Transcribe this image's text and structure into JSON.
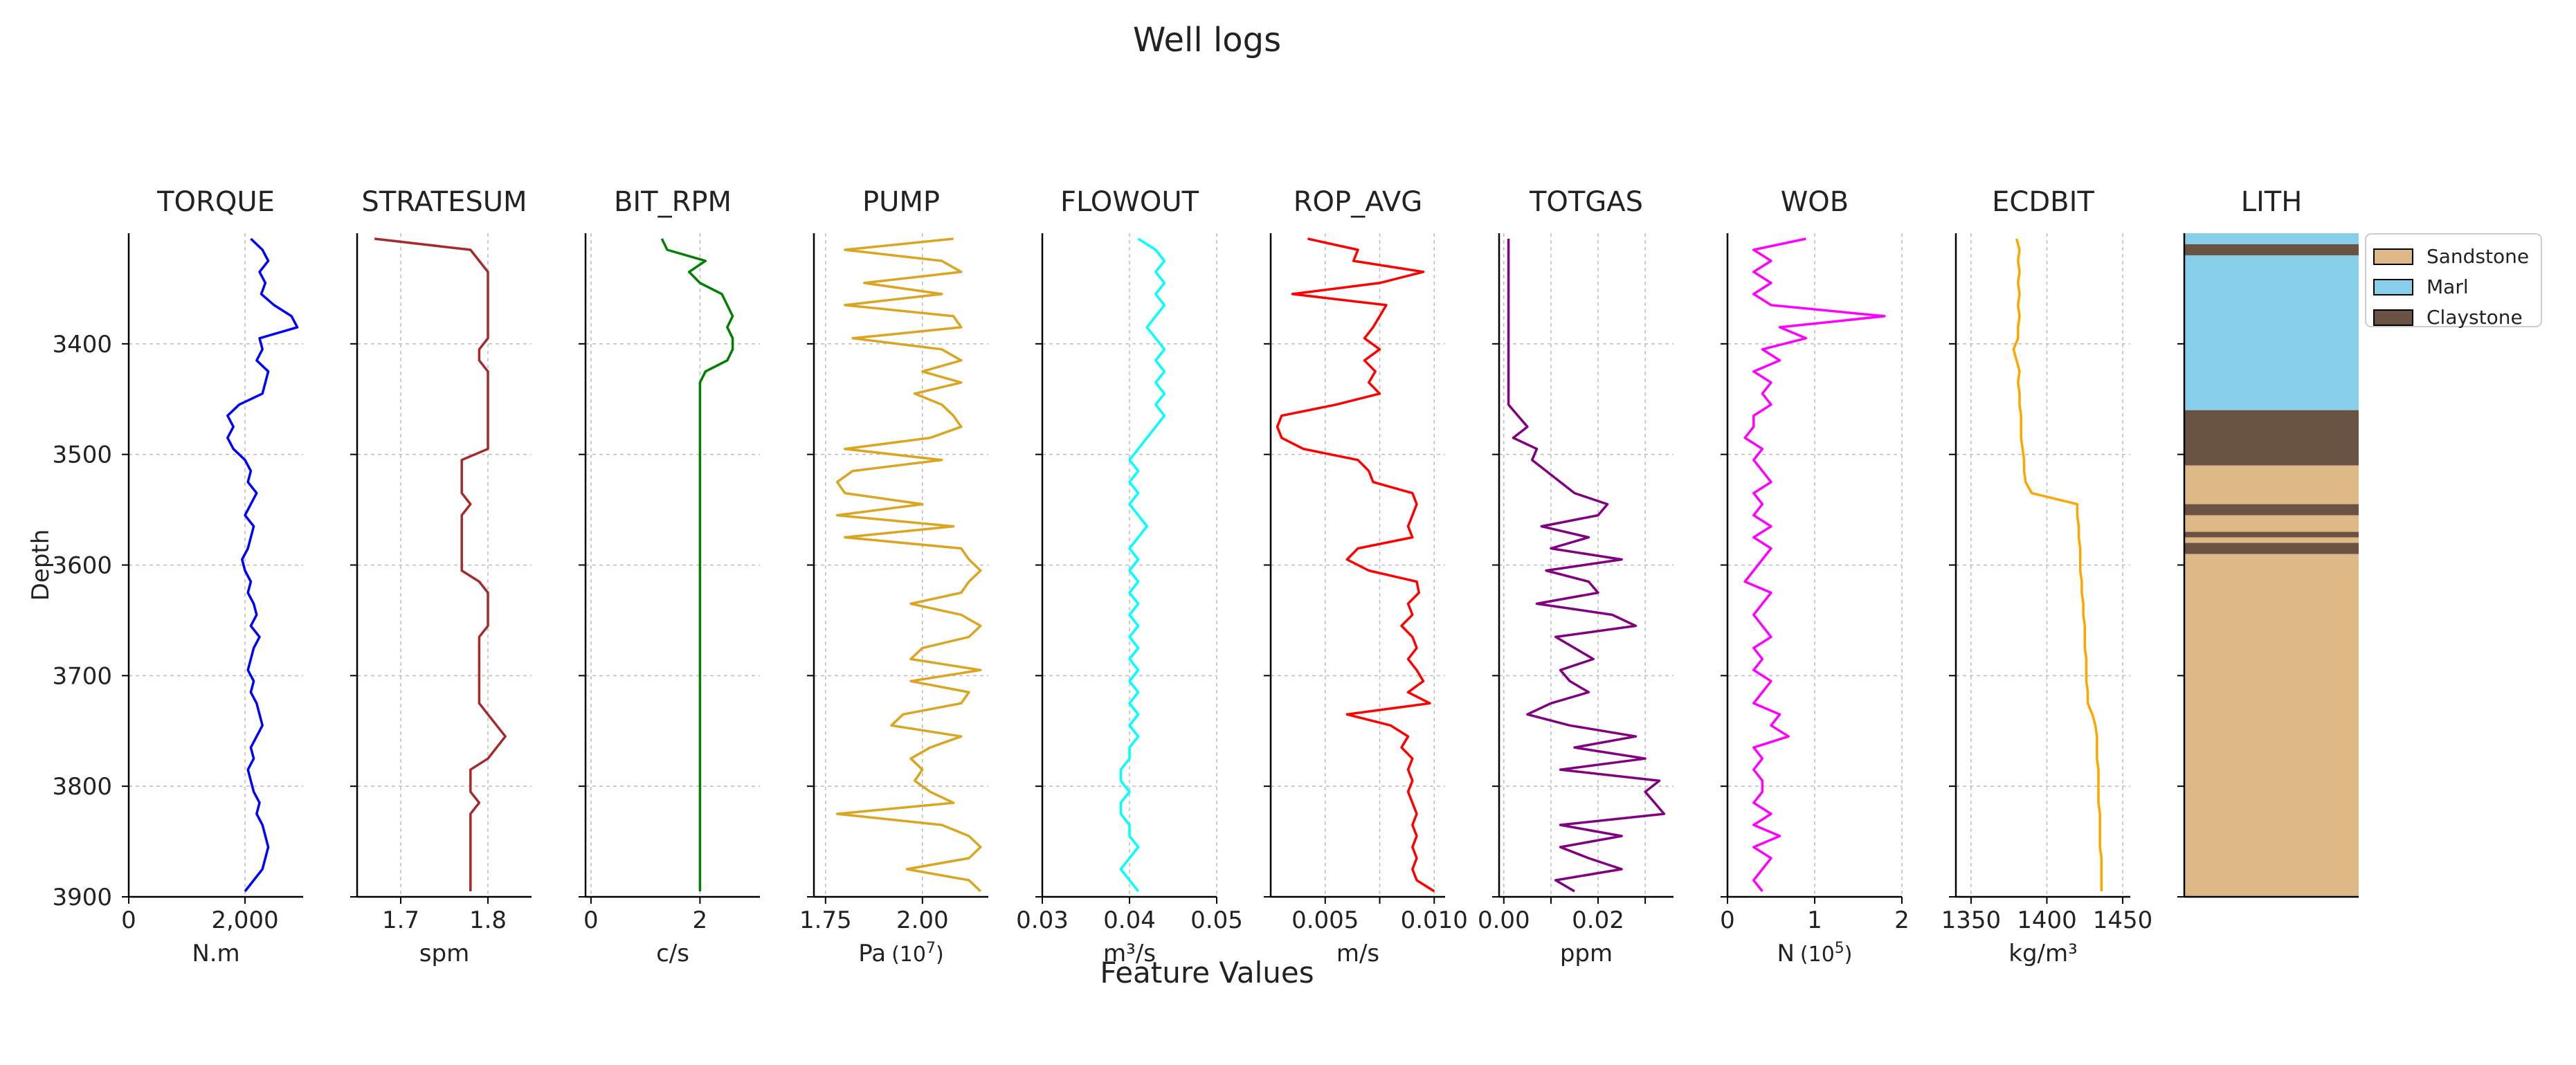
{
  "chart_data": {
    "type": "line",
    "title": "Well logs",
    "xlabel": "Feature Values",
    "ylabel": "Depth",
    "ylim": [
      3900,
      3300
    ],
    "y_ticks": [
      3400,
      3500,
      3600,
      3700,
      3800,
      3900
    ],
    "depths": [
      3305,
      3315,
      3325,
      3335,
      3345,
      3355,
      3365,
      3375,
      3385,
      3395,
      3405,
      3415,
      3425,
      3435,
      3445,
      3455,
      3465,
      3475,
      3485,
      3495,
      3505,
      3515,
      3525,
      3535,
      3545,
      3555,
      3565,
      3575,
      3585,
      3595,
      3605,
      3615,
      3625,
      3635,
      3645,
      3655,
      3665,
      3675,
      3685,
      3695,
      3705,
      3715,
      3725,
      3735,
      3745,
      3755,
      3765,
      3775,
      3785,
      3795,
      3805,
      3815,
      3825,
      3835,
      3845,
      3855,
      3865,
      3875,
      3885,
      3895
    ],
    "series": [
      {
        "name": "TORQUE",
        "unit": "N.m",
        "color": "#0000ff",
        "xlim": [
          0,
          3000
        ],
        "xticks": [
          0,
          2000
        ],
        "xtick_labels": [
          "0",
          "2,000"
        ],
        "values": [
          2100,
          2300,
          2400,
          2250,
          2350,
          2280,
          2500,
          2800,
          2900,
          2250,
          2300,
          2200,
          2400,
          2350,
          2300,
          1900,
          1700,
          1800,
          1700,
          1800,
          2000,
          2100,
          2050,
          2200,
          2100,
          2000,
          2150,
          2100,
          2050,
          1950,
          2000,
          2100,
          2050,
          2150,
          2200,
          2100,
          2250,
          2150,
          2100,
          2050,
          2150,
          2100,
          2200,
          2250,
          2300,
          2200,
          2100,
          2150,
          2050,
          2100,
          2150,
          2250,
          2200,
          2300,
          2350,
          2400,
          2350,
          2300,
          2150,
          2000
        ]
      },
      {
        "name": "STRATESUM",
        "unit": "spm",
        "color": "#a52a2a",
        "xlim": [
          1.65,
          1.85
        ],
        "xticks": [
          1.7,
          1.8
        ],
        "xtick_labels": [
          "1.7",
          "1.8"
        ],
        "values": [
          1.67,
          1.78,
          1.79,
          1.8,
          1.8,
          1.8,
          1.8,
          1.8,
          1.8,
          1.8,
          1.79,
          1.79,
          1.8,
          1.8,
          1.8,
          1.8,
          1.8,
          1.8,
          1.8,
          1.8,
          1.77,
          1.77,
          1.77,
          1.77,
          1.78,
          1.77,
          1.77,
          1.77,
          1.77,
          1.77,
          1.77,
          1.79,
          1.8,
          1.8,
          1.8,
          1.8,
          1.79,
          1.79,
          1.79,
          1.79,
          1.79,
          1.79,
          1.79,
          1.8,
          1.81,
          1.82,
          1.81,
          1.8,
          1.78,
          1.78,
          1.78,
          1.79,
          1.78,
          1.78,
          1.78,
          1.78,
          1.78,
          1.78,
          1.78,
          1.78
        ]
      },
      {
        "name": "BIT_RPM",
        "unit": "c/s",
        "color": "#008000",
        "xlim": [
          -0.1,
          3.1
        ],
        "xticks": [
          0,
          2
        ],
        "xtick_labels": [
          "0",
          "2"
        ],
        "values": [
          1.3,
          1.4,
          2.1,
          1.8,
          2.0,
          2.4,
          2.5,
          2.6,
          2.5,
          2.6,
          2.6,
          2.5,
          2.1,
          2.0,
          2.0,
          2.0,
          2.0,
          2.0,
          2.0,
          2.0,
          2.0,
          2.0,
          2.0,
          2.0,
          2.0,
          2.0,
          2.0,
          2.0,
          2.0,
          2.0,
          2.0,
          2.0,
          2.0,
          2.0,
          2.0,
          2.0,
          2.0,
          2.0,
          2.0,
          2.0,
          2.0,
          2.0,
          2.0,
          2.0,
          2.0,
          2.0,
          2.0,
          2.0,
          2.0,
          2.0,
          2.0,
          2.0,
          2.0,
          2.0,
          2.0,
          2.0,
          2.0,
          2.0,
          2.0,
          2.0
        ]
      },
      {
        "name": "PUMP",
        "unit": "Pa",
        "unit_exp": "(10",
        "unit_exp_sup": "7",
        "unit_exp_end": ")",
        "color": "#daa520",
        "xlim": [
          1.72,
          2.17
        ],
        "xticks": [
          1.75,
          2.0
        ],
        "xtick_labels": [
          "1.75",
          "2.00"
        ],
        "values": [
          2.08,
          1.8,
          2.05,
          2.1,
          1.85,
          2.05,
          1.8,
          2.08,
          2.1,
          1.82,
          2.05,
          2.1,
          2.0,
          2.1,
          1.98,
          2.05,
          2.08,
          2.1,
          2.02,
          1.8,
          2.05,
          1.82,
          1.78,
          1.8,
          2.0,
          1.78,
          2.08,
          1.8,
          2.1,
          2.12,
          2.15,
          2.12,
          2.1,
          1.97,
          2.1,
          2.15,
          2.12,
          2.0,
          1.97,
          2.15,
          1.97,
          2.12,
          2.1,
          1.95,
          1.92,
          2.1,
          2.02,
          1.97,
          2.0,
          1.98,
          2.02,
          2.08,
          1.78,
          2.05,
          2.12,
          2.15,
          2.12,
          1.96,
          2.12,
          2.15
        ]
      },
      {
        "name": "FLOWOUT",
        "unit": "m³/s",
        "color": "#00ffff",
        "xlim": [
          0.03,
          0.05
        ],
        "xticks": [
          0.03,
          0.04,
          0.05
        ],
        "xtick_labels": [
          "0.03",
          "0.04",
          "0.05"
        ],
        "values": [
          0.041,
          0.043,
          0.044,
          0.043,
          0.044,
          0.043,
          0.044,
          0.043,
          0.042,
          0.043,
          0.044,
          0.043,
          0.044,
          0.043,
          0.044,
          0.043,
          0.044,
          0.043,
          0.042,
          0.041,
          0.04,
          0.041,
          0.04,
          0.041,
          0.04,
          0.041,
          0.042,
          0.041,
          0.04,
          0.041,
          0.04,
          0.041,
          0.04,
          0.041,
          0.04,
          0.041,
          0.04,
          0.041,
          0.04,
          0.041,
          0.04,
          0.041,
          0.04,
          0.041,
          0.04,
          0.041,
          0.04,
          0.04,
          0.039,
          0.039,
          0.04,
          0.039,
          0.039,
          0.04,
          0.04,
          0.041,
          0.04,
          0.039,
          0.04,
          0.041
        ]
      },
      {
        "name": "ROP_AVG",
        "unit": "m/s",
        "color": "#ff0000",
        "xlim": [
          0.0025,
          0.0105
        ],
        "xticks": [
          0.005,
          0.0075,
          0.01
        ],
        "xtick_labels": [
          "0.005",
          "",
          "0.010"
        ],
        "values": [
          0.0042,
          0.0065,
          0.0063,
          0.0095,
          0.0075,
          0.0035,
          0.0078,
          0.0075,
          0.0072,
          0.0068,
          0.0075,
          0.0068,
          0.0073,
          0.007,
          0.0075,
          0.0055,
          0.003,
          0.0028,
          0.003,
          0.004,
          0.0065,
          0.007,
          0.0072,
          0.009,
          0.0092,
          0.009,
          0.0088,
          0.009,
          0.0065,
          0.006,
          0.007,
          0.0092,
          0.0093,
          0.0088,
          0.009,
          0.0085,
          0.009,
          0.0092,
          0.0088,
          0.0092,
          0.0095,
          0.0088,
          0.0098,
          0.006,
          0.008,
          0.0088,
          0.0085,
          0.009,
          0.0088,
          0.009,
          0.0088,
          0.009,
          0.0092,
          0.009,
          0.0092,
          0.009,
          0.0092,
          0.009,
          0.0092,
          0.01
        ]
      },
      {
        "name": "TOTGAS",
        "unit": "ppm",
        "color": "#800080",
        "xlim": [
          -0.001,
          0.036
        ],
        "xticks": [
          0.0,
          0.01,
          0.02,
          0.03
        ],
        "xtick_labels": [
          "0.00",
          "",
          "0.02",
          ""
        ],
        "values": [
          0.001,
          0.001,
          0.001,
          0.001,
          0.001,
          0.001,
          0.001,
          0.001,
          0.001,
          0.001,
          0.001,
          0.001,
          0.001,
          0.001,
          0.001,
          0.001,
          0.003,
          0.005,
          0.002,
          0.007,
          0.006,
          0.009,
          0.012,
          0.015,
          0.022,
          0.02,
          0.008,
          0.018,
          0.01,
          0.025,
          0.009,
          0.018,
          0.02,
          0.007,
          0.023,
          0.028,
          0.011,
          0.015,
          0.019,
          0.012,
          0.014,
          0.018,
          0.01,
          0.005,
          0.014,
          0.028,
          0.015,
          0.03,
          0.012,
          0.033,
          0.03,
          0.032,
          0.034,
          0.012,
          0.025,
          0.012,
          0.018,
          0.025,
          0.011,
          0.015
        ]
      },
      {
        "name": "WOB",
        "unit": "N",
        "unit_exp": "(10",
        "unit_exp_sup": "5",
        "unit_exp_end": ")",
        "color": "#ff00ff",
        "xlim": [
          0,
          2
        ],
        "xticks": [
          0,
          1,
          2
        ],
        "xtick_labels": [
          "0",
          "1",
          "2"
        ],
        "values": [
          0.9,
          0.3,
          0.5,
          0.3,
          0.5,
          0.3,
          0.5,
          1.8,
          0.6,
          0.9,
          0.4,
          0.6,
          0.3,
          0.5,
          0.4,
          0.5,
          0.3,
          0.3,
          0.2,
          0.4,
          0.3,
          0.4,
          0.5,
          0.3,
          0.4,
          0.3,
          0.5,
          0.3,
          0.5,
          0.4,
          0.3,
          0.2,
          0.5,
          0.4,
          0.3,
          0.4,
          0.5,
          0.3,
          0.4,
          0.3,
          0.5,
          0.4,
          0.3,
          0.6,
          0.5,
          0.7,
          0.3,
          0.4,
          0.3,
          0.4,
          0.4,
          0.3,
          0.5,
          0.3,
          0.6,
          0.3,
          0.5,
          0.4,
          0.3,
          0.4
        ]
      },
      {
        "name": "ECDBIT",
        "unit": "kg/m³",
        "color": "#ffa500",
        "xlim": [
          1340,
          1455
        ],
        "xticks": [
          1350,
          1400,
          1450
        ],
        "xtick_labels": [
          "1350",
          "1400",
          "1450"
        ],
        "values": [
          1380,
          1382,
          1381,
          1382,
          1381,
          1382,
          1381,
          1382,
          1381,
          1381,
          1378,
          1380,
          1382,
          1381,
          1382,
          1382,
          1383,
          1383,
          1383,
          1384,
          1385,
          1385,
          1386,
          1390,
          1420,
          1420,
          1421,
          1421,
          1422,
          1422,
          1422,
          1423,
          1423,
          1424,
          1424,
          1425,
          1425,
          1425,
          1426,
          1426,
          1426,
          1427,
          1427,
          1430,
          1432,
          1433,
          1433,
          1433,
          1434,
          1434,
          1434,
          1434,
          1435,
          1435,
          1435,
          1435,
          1436,
          1436,
          1436,
          1436
        ]
      }
    ],
    "lith": {
      "name": "LITH",
      "legend": [
        {
          "label": "Sandstone",
          "color": "#deb887"
        },
        {
          "label": "Marl",
          "color": "#87ceeb"
        },
        {
          "label": "Claystone",
          "color": "#6b5344"
        }
      ],
      "intervals": [
        {
          "top": 3300,
          "bottom": 3310,
          "lith": "Marl"
        },
        {
          "top": 3310,
          "bottom": 3320,
          "lith": "Claystone"
        },
        {
          "top": 3320,
          "bottom": 3460,
          "lith": "Marl"
        },
        {
          "top": 3460,
          "bottom": 3510,
          "lith": "Claystone"
        },
        {
          "top": 3510,
          "bottom": 3545,
          "lith": "Sandstone"
        },
        {
          "top": 3545,
          "bottom": 3555,
          "lith": "Claystone"
        },
        {
          "top": 3555,
          "bottom": 3570,
          "lith": "Sandstone"
        },
        {
          "top": 3570,
          "bottom": 3575,
          "lith": "Claystone"
        },
        {
          "top": 3575,
          "bottom": 3580,
          "lith": "Sandstone"
        },
        {
          "top": 3580,
          "bottom": 3590,
          "lith": "Claystone"
        },
        {
          "top": 3590,
          "bottom": 3900,
          "lith": "Sandstone"
        }
      ]
    }
  }
}
